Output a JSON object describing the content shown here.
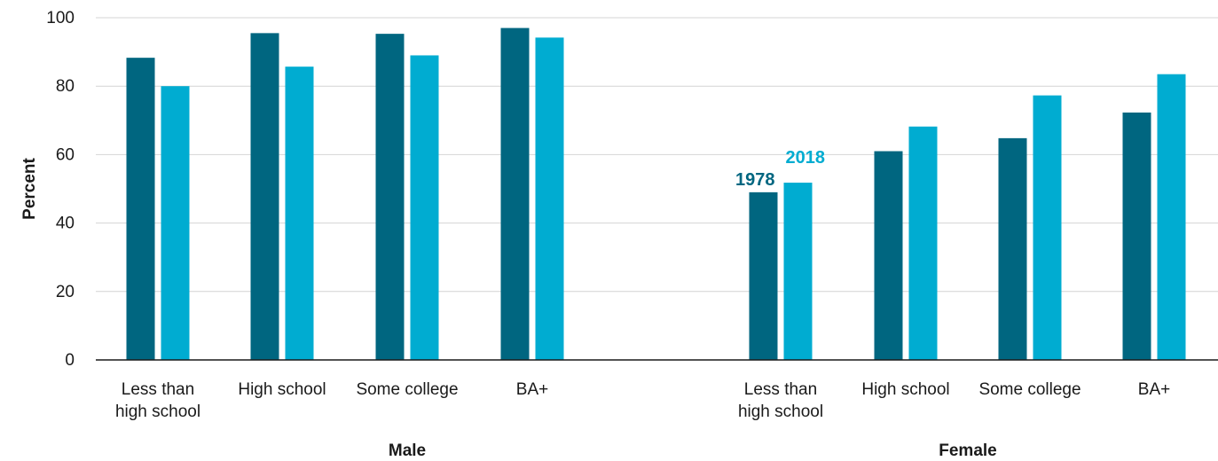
{
  "chart_data": {
    "type": "bar",
    "ylabel": "Percent",
    "ylim": [
      0,
      100
    ],
    "yticks": [
      0,
      20,
      40,
      60,
      80,
      100
    ],
    "grid": true,
    "groups": [
      {
        "label": "Male",
        "categories": [
          "Less than\nhigh school",
          "High school",
          "Some college",
          "BA+"
        ]
      },
      {
        "label": "Female",
        "categories": [
          "Less than\nhigh school",
          "High school",
          "Some college",
          "BA+"
        ]
      }
    ],
    "series": [
      {
        "name": "1978",
        "color": "#006680",
        "values": [
          88.3,
          95.5,
          95.3,
          97.0,
          49.0,
          61.0,
          64.8,
          72.3
        ]
      },
      {
        "name": "2018",
        "color": "#00acd1",
        "values": [
          80.0,
          85.7,
          89.0,
          94.2,
          51.8,
          68.2,
          77.3,
          83.5
        ]
      }
    ],
    "series_labels_at_category_index": 4,
    "colors": {
      "grid": "#d4d4d4",
      "axis": "#1a1a1a",
      "text": "#1a1a1a"
    }
  }
}
